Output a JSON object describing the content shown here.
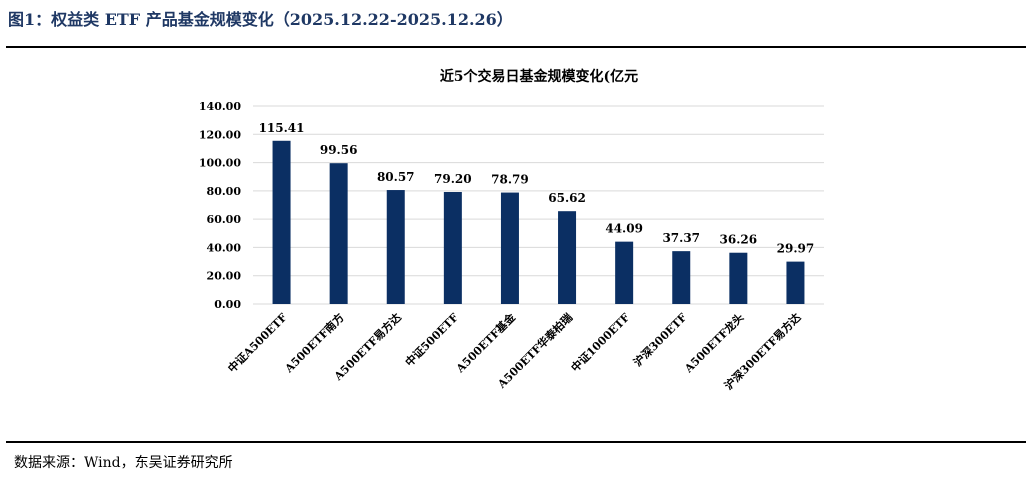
{
  "figure": {
    "title": "图1：权益类 ETF 产品基金规模变化（2025.12.22-2025.12.26）",
    "source": "数据来源：Wind，东吴证券研究所"
  },
  "colors": {
    "bar": "#0b2f63",
    "grid": "#d9d9d9",
    "title": "#1f3864"
  },
  "chart_data": {
    "type": "bar",
    "title": "近5个交易日基金规模变化(亿元",
    "xlabel": "",
    "ylabel": "",
    "ylim": [
      0,
      140
    ],
    "yticks": [
      "0.00",
      "20.00",
      "40.00",
      "60.00",
      "80.00",
      "100.00",
      "120.00",
      "140.00"
    ],
    "grid": true,
    "categories": [
      "中证A500ETF",
      "A500ETF南方",
      "A500ETF易方达",
      "中证500ETF",
      "A500ETF基金",
      "A500ETF华泰柏瑞",
      "中证1000ETF",
      "沪深300ETF",
      "A500ETF龙头",
      "沪深300ETF易方达"
    ],
    "values": [
      115.41,
      99.56,
      80.57,
      79.2,
      78.79,
      65.62,
      44.09,
      37.37,
      36.26,
      29.97
    ],
    "value_labels": [
      "115.41",
      "99.56",
      "80.57",
      "79.20",
      "78.79",
      "65.62",
      "44.09",
      "37.37",
      "36.26",
      "29.97"
    ]
  }
}
